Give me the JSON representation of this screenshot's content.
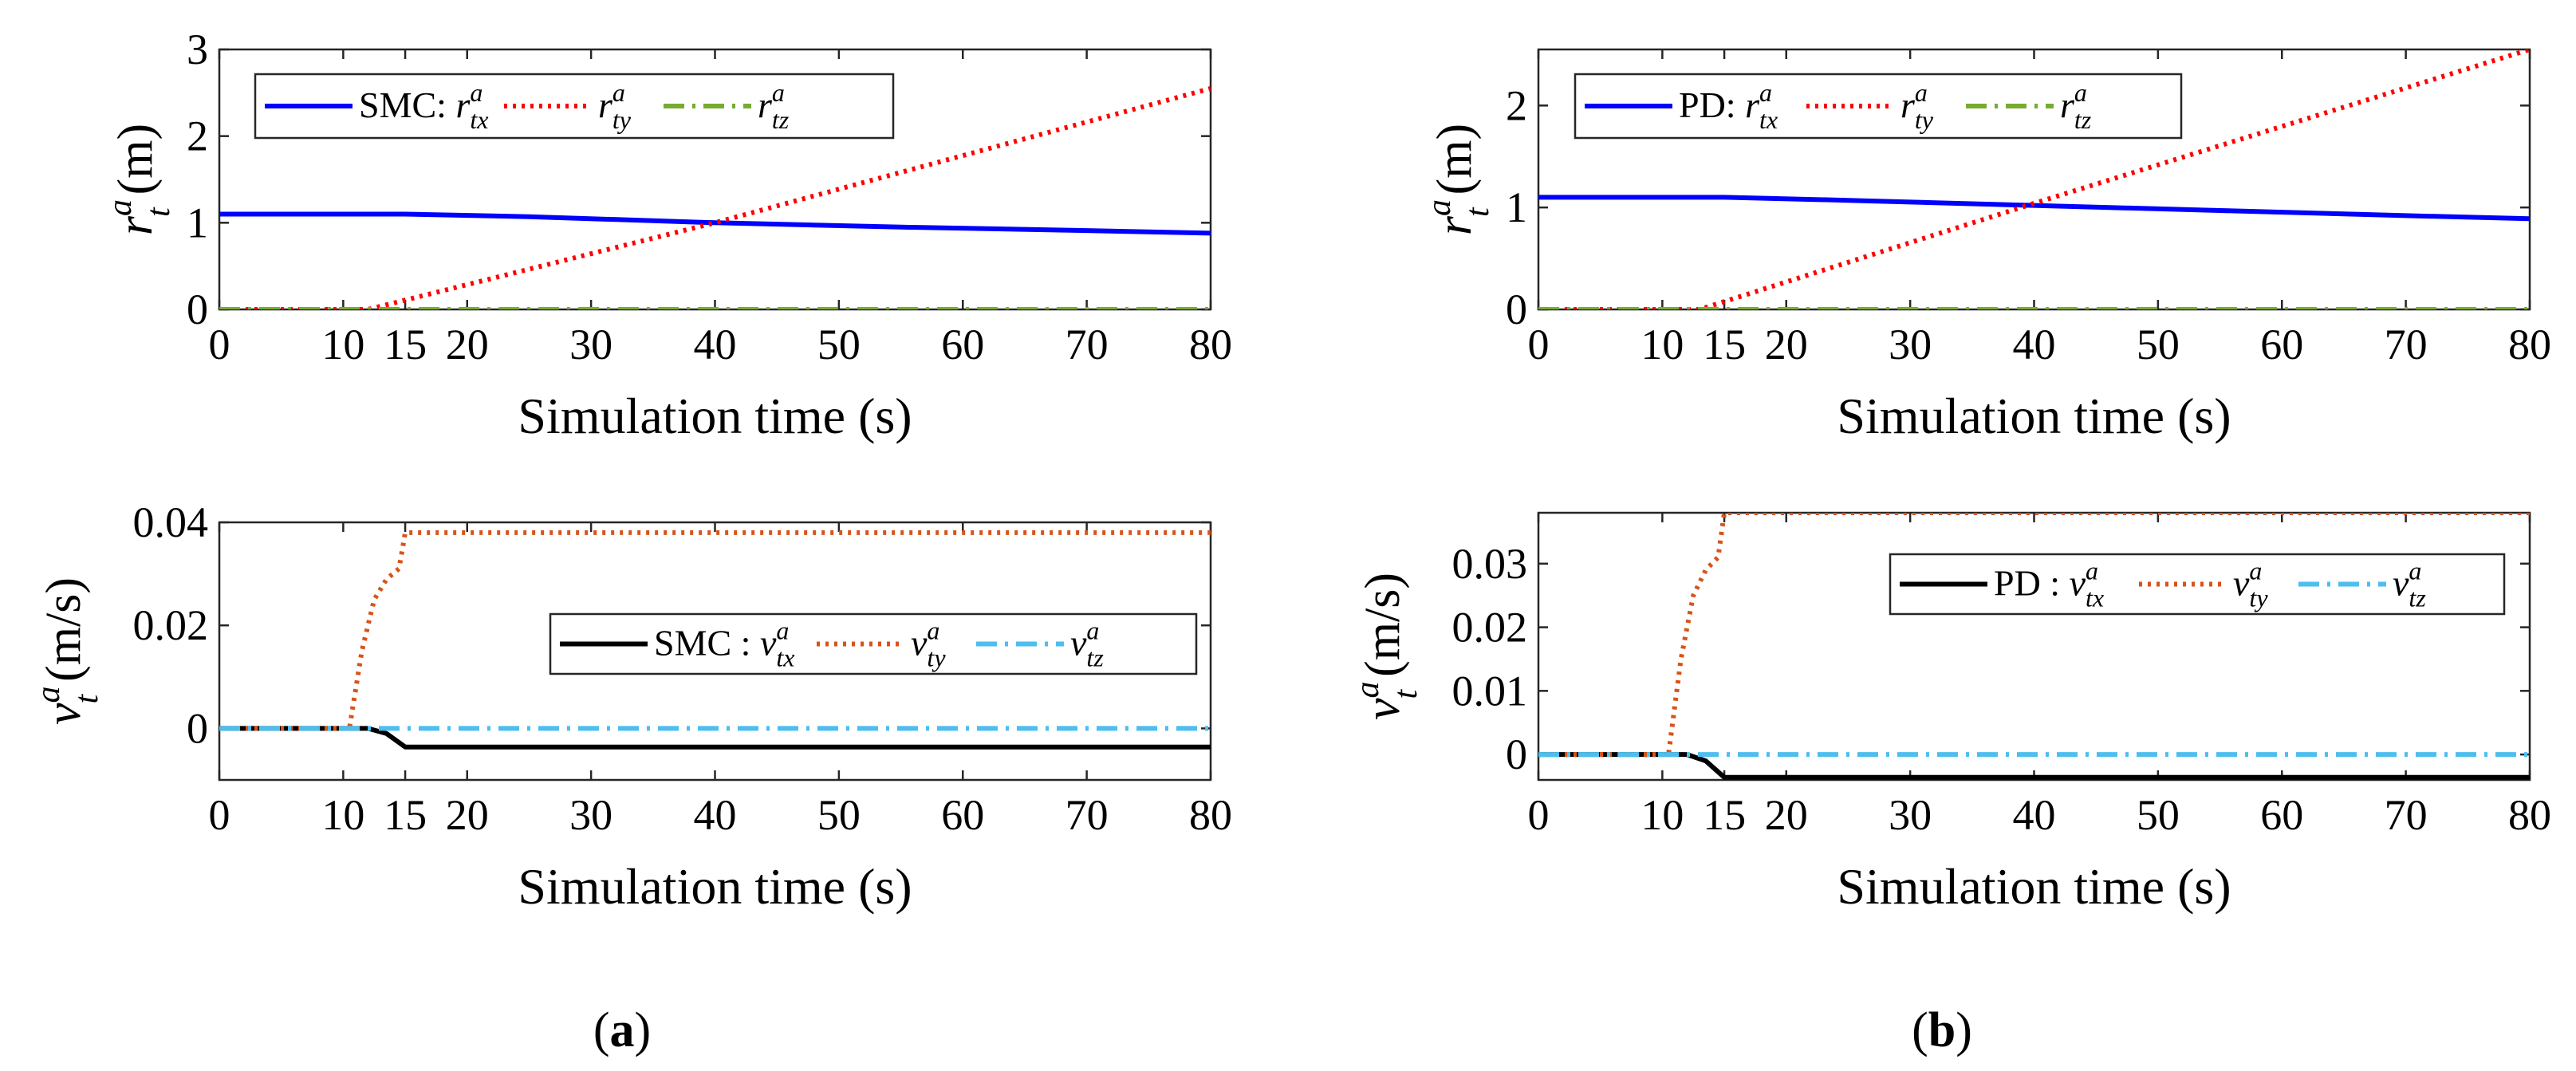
{
  "figure": {
    "caption_a": "a",
    "caption_b": "b"
  },
  "chart_data": [
    {
      "id": "a-top",
      "type": "line",
      "title": "",
      "xlabel": "Simulation time  (s)",
      "ylabel_main": "r",
      "ylabel_sub": "t",
      "ylabel_sup": "a",
      "ylabel_unit": "(m)",
      "xlim": [
        0,
        80
      ],
      "ylim": [
        0,
        3
      ],
      "xticks": [
        0,
        10,
        15,
        20,
        30,
        40,
        50,
        60,
        70,
        80
      ],
      "yticks": [
        0,
        1,
        2,
        3
      ],
      "legend": {
        "prefix": "SMC: ",
        "location": "top-left",
        "orientation": "horizontal"
      },
      "series": [
        {
          "name": "r",
          "sup": "a",
          "sub": "tx",
          "color": "#0000ff",
          "style": "solid",
          "x": [
            0,
            15,
            25,
            40,
            55,
            70,
            80
          ],
          "y": [
            1.1,
            1.1,
            1.07,
            1.0,
            0.95,
            0.91,
            0.88
          ]
        },
        {
          "name": "r",
          "sup": "a",
          "sub": "ty",
          "color": "#ff0000",
          "style": "dotted",
          "x": [
            0,
            12,
            40,
            80
          ],
          "y": [
            0,
            0,
            1.0,
            2.55
          ]
        },
        {
          "name": "r",
          "sup": "a",
          "sub": "tz",
          "color": "#77ac30",
          "style": "dashdot",
          "x": [
            0,
            80
          ],
          "y": [
            0,
            0
          ]
        }
      ]
    },
    {
      "id": "a-bottom",
      "type": "line",
      "title": "",
      "xlabel": "Simulation time  (s)",
      "ylabel_main": "v",
      "ylabel_sub": "t",
      "ylabel_sup": "a",
      "ylabel_unit": "(m/s)",
      "xlim": [
        0,
        80
      ],
      "ylim": [
        -0.01,
        0.04
      ],
      "xticks": [
        0,
        10,
        15,
        20,
        30,
        40,
        50,
        60,
        70,
        80
      ],
      "yticks": [
        0,
        0.02,
        0.04
      ],
      "ytick_labels": [
        "0",
        "0.02",
        "0.04"
      ],
      "legend": {
        "prefix": "SMC : ",
        "location": "center-right",
        "orientation": "horizontal"
      },
      "series": [
        {
          "name": "v",
          "sup": "a",
          "sub": "tx",
          "color": "#000000",
          "style": "solid",
          "x": [
            0,
            12,
            13.5,
            15,
            80
          ],
          "y": [
            0,
            0,
            -0.001,
            -0.0036,
            -0.0036
          ]
        },
        {
          "name": "v",
          "sup": "a",
          "sub": "ty",
          "color": "#d95319",
          "style": "dotted",
          "x": [
            0,
            10.5,
            11.5,
            12.5,
            13.5,
            14.5,
            15,
            80
          ],
          "y": [
            0,
            0,
            0.015,
            0.025,
            0.029,
            0.031,
            0.038,
            0.038
          ]
        },
        {
          "name": "v",
          "sup": "a",
          "sub": "tz",
          "color": "#4dbeee",
          "style": "dashdot",
          "x": [
            0,
            80
          ],
          "y": [
            0,
            0
          ]
        }
      ]
    },
    {
      "id": "b-top",
      "type": "line",
      "title": "",
      "xlabel": "Simulation time  (s)",
      "ylabel_main": "r",
      "ylabel_sub": "t",
      "ylabel_sup": "a",
      "ylabel_unit": "(m)",
      "xlim": [
        0,
        80
      ],
      "ylim": [
        0,
        2.55
      ],
      "xticks": [
        0,
        10,
        15,
        20,
        30,
        40,
        50,
        60,
        70,
        80
      ],
      "yticks": [
        0,
        1,
        2
      ],
      "legend": {
        "prefix": "PD: ",
        "location": "top-left",
        "orientation": "horizontal"
      },
      "series": [
        {
          "name": "r",
          "sup": "a",
          "sub": "tx",
          "color": "#0000ff",
          "style": "solid",
          "x": [
            0,
            15,
            25,
            40,
            55,
            70,
            80
          ],
          "y": [
            1.1,
            1.1,
            1.07,
            1.02,
            0.97,
            0.92,
            0.89
          ]
        },
        {
          "name": "r",
          "sup": "a",
          "sub": "ty",
          "color": "#ff0000",
          "style": "dotted",
          "x": [
            0,
            13,
            40,
            80
          ],
          "y": [
            0,
            0,
            1.04,
            2.55
          ]
        },
        {
          "name": "r",
          "sup": "a",
          "sub": "tz",
          "color": "#77ac30",
          "style": "dashdot",
          "x": [
            0,
            80
          ],
          "y": [
            0,
            0
          ]
        }
      ]
    },
    {
      "id": "b-bottom",
      "type": "line",
      "title": "",
      "xlabel": "Simulation time  (s)",
      "ylabel_main": "v",
      "ylabel_sub": "t",
      "ylabel_sup": "a",
      "ylabel_unit": "(m/s)",
      "xlim": [
        0,
        80
      ],
      "ylim": [
        -0.004,
        0.038
      ],
      "xticks": [
        0,
        10,
        15,
        20,
        30,
        40,
        50,
        60,
        70,
        80
      ],
      "yticks": [
        0,
        0.01,
        0.02,
        0.03
      ],
      "ytick_labels": [
        "0",
        "0.01",
        "0.02",
        "0.03"
      ],
      "legend": {
        "prefix": "PD : ",
        "location": "top-right",
        "orientation": "horizontal"
      },
      "series": [
        {
          "name": "v",
          "sup": "a",
          "sub": "tx",
          "color": "#000000",
          "style": "solid",
          "x": [
            0,
            12,
            13.5,
            15,
            80
          ],
          "y": [
            0,
            0,
            -0.001,
            -0.0036,
            -0.0036
          ]
        },
        {
          "name": "v",
          "sup": "a",
          "sub": "ty",
          "color": "#d95319",
          "style": "dotted",
          "x": [
            0,
            10.5,
            11.5,
            12.5,
            13.5,
            14.5,
            15,
            80
          ],
          "y": [
            0,
            0,
            0.015,
            0.025,
            0.029,
            0.031,
            0.038,
            0.038
          ]
        },
        {
          "name": "v",
          "sup": "a",
          "sub": "tz",
          "color": "#4dbeee",
          "style": "dashdot",
          "x": [
            0,
            80
          ],
          "y": [
            0,
            0
          ]
        }
      ]
    }
  ]
}
